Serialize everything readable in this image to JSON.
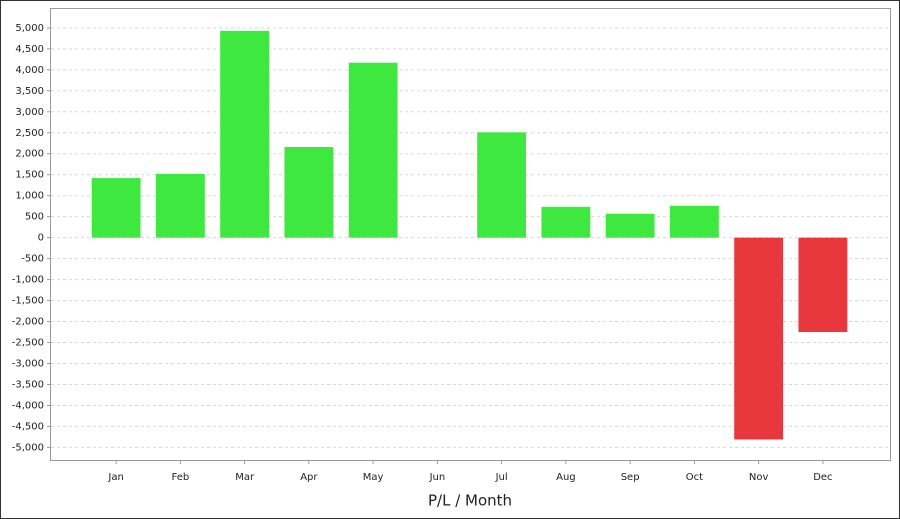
{
  "chart_data": {
    "type": "bar",
    "x_label": "P/L / Month",
    "categories": [
      "Jan",
      "Feb",
      "Mar",
      "Apr",
      "May",
      "Jun",
      "Jul",
      "Aug",
      "Sep",
      "Oct",
      "Nov",
      "Dec"
    ],
    "values": [
      1420,
      1520,
      4930,
      2160,
      4170,
      0,
      2510,
      735,
      570,
      760,
      -4810,
      -2250
    ],
    "positive_color": "#3ee83e",
    "negative_color": "#e8383d",
    "ylim": [
      -5300,
      5450
    ],
    "yticks": [
      {
        "value": -5000,
        "label": "-5,000"
      },
      {
        "value": -4500,
        "label": "-4,500"
      },
      {
        "value": -4000,
        "label": "-4,000"
      },
      {
        "value": -3500,
        "label": "-3,500"
      },
      {
        "value": -3000,
        "label": "-3,000"
      },
      {
        "value": -2500,
        "label": "-2,500"
      },
      {
        "value": -2000,
        "label": "-2,000"
      },
      {
        "value": -1500,
        "label": "-1,500"
      },
      {
        "value": -1000,
        "label": "-1,000"
      },
      -500,
      0,
      500,
      {
        "value": 1000,
        "label": "1,000"
      },
      {
        "value": 1500,
        "label": "1,500"
      },
      {
        "value": 2000,
        "label": "2,000"
      },
      {
        "value": 2500,
        "label": "2,500"
      },
      {
        "value": 3000,
        "label": "3,000"
      },
      {
        "value": 3500,
        "label": "3,500"
      },
      {
        "value": 4000,
        "label": "4,000"
      },
      {
        "value": 4500,
        "label": "4,500"
      },
      {
        "value": 5000,
        "label": "5,000"
      }
    ],
    "grid": true
  }
}
